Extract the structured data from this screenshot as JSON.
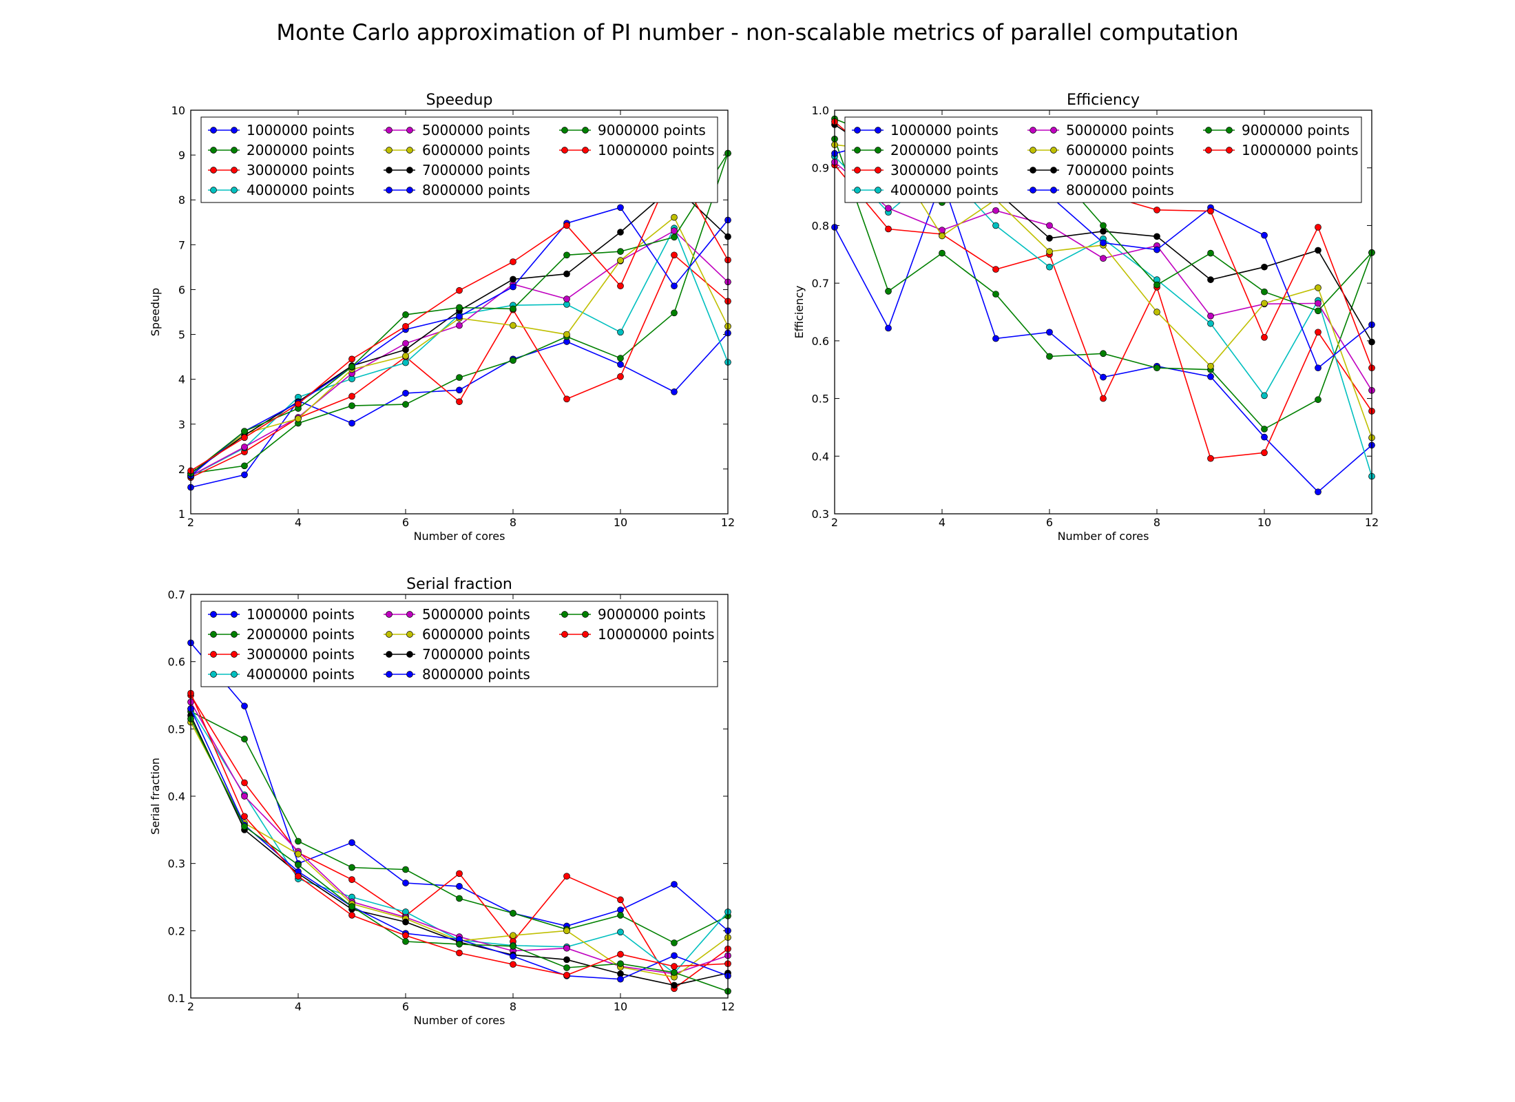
{
  "title": "Monte Carlo approximation of PI number - non-scalable metrics of parallel computation",
  "series_names": [
    "1000000 points",
    "2000000 points",
    "3000000 points",
    "4000000 points",
    "5000000 points",
    "6000000 points",
    "7000000 points",
    "8000000 points",
    "9000000 points",
    "10000000 points"
  ],
  "series_colors": [
    "#0000ff",
    "#008000",
    "#ff0000",
    "#00bfbf",
    "#bf00bf",
    "#bfbf00",
    "#000000",
    "#0000ff",
    "#008000",
    "#ff0000"
  ],
  "chart_data": [
    {
      "type": "line",
      "title": "Speedup",
      "xlabel": "Number of cores",
      "ylabel": "Speedup",
      "xlim": [
        2,
        12
      ],
      "ylim": [
        1,
        10
      ],
      "xticks": [
        "2",
        "4",
        "6",
        "8",
        "10",
        "12"
      ],
      "yticks": [
        "1",
        "2",
        "3",
        "4",
        "5",
        "6",
        "7",
        "8",
        "9",
        "10"
      ],
      "legend_position": "top",
      "x": [
        2,
        3,
        4,
        5,
        6,
        7,
        8,
        9,
        10,
        11,
        12
      ],
      "series": [
        {
          "name": "1000000 points",
          "values": [
            1.59,
            1.87,
            3.52,
            3.02,
            3.69,
            3.76,
            4.45,
            4.84,
            4.33,
            3.72,
            5.03
          ]
        },
        {
          "name": "2000000 points",
          "values": [
            1.9,
            2.07,
            3.02,
            3.41,
            3.44,
            4.04,
            4.42,
            4.95,
            4.47,
            5.48,
            9.04
          ]
        },
        {
          "name": "3000000 points",
          "values": [
            1.81,
            2.38,
            3.14,
            3.62,
            4.5,
            3.5,
            5.55,
            3.56,
            4.06,
            6.77,
            5.74
          ]
        },
        {
          "name": "4000000 points",
          "values": [
            1.84,
            2.47,
            3.6,
            4.01,
            4.37,
            5.44,
            5.65,
            5.67,
            5.05,
            7.37,
            4.38
          ]
        },
        {
          "name": "5000000 points",
          "values": [
            1.85,
            2.49,
            3.15,
            4.13,
            4.8,
            5.2,
            6.12,
            5.79,
            6.64,
            7.31,
            6.17
          ]
        },
        {
          "name": "6000000 points",
          "values": [
            1.9,
            2.79,
            3.12,
            4.22,
            4.52,
            5.36,
            5.2,
            5.0,
            6.65,
            7.61,
            5.18
          ]
        },
        {
          "name": "7000000 points",
          "values": [
            1.9,
            2.75,
            3.5,
            4.3,
            4.66,
            5.53,
            6.23,
            6.35,
            7.28,
            8.32,
            7.18
          ]
        },
        {
          "name": "8000000 points",
          "values": [
            1.85,
            2.84,
            3.48,
            4.27,
            5.11,
            5.4,
            6.06,
            7.48,
            7.83,
            6.08,
            7.55
          ]
        },
        {
          "name": "9000000 points",
          "values": [
            1.9,
            2.84,
            3.35,
            4.28,
            5.44,
            5.6,
            5.57,
            6.77,
            6.85,
            7.17,
            9.04
          ]
        },
        {
          "name": "10000000 points",
          "values": [
            1.96,
            2.7,
            3.45,
            4.45,
            5.18,
            5.98,
            6.62,
            7.43,
            6.08,
            8.77,
            6.66
          ]
        }
      ]
    },
    {
      "type": "line",
      "title": "Efficiency",
      "xlabel": "Number of cores",
      "ylabel": "Efficiency",
      "xlim": [
        2,
        12
      ],
      "ylim": [
        0.3,
        1.0
      ],
      "xticks": [
        "2",
        "4",
        "6",
        "8",
        "10",
        "12"
      ],
      "yticks": [
        "0.3",
        "0.4",
        "0.5",
        "0.6",
        "0.7",
        "0.8",
        "0.9",
        "1.0"
      ],
      "legend_position": "top",
      "x": [
        2,
        3,
        4,
        5,
        6,
        7,
        8,
        9,
        10,
        11,
        12
      ],
      "series": [
        {
          "name": "1000000 points",
          "values": [
            0.797,
            0.622,
            0.88,
            0.604,
            0.615,
            0.537,
            0.556,
            0.538,
            0.433,
            0.338,
            0.419
          ]
        },
        {
          "name": "2000000 points",
          "values": [
            0.95,
            0.686,
            0.752,
            0.681,
            0.573,
            0.578,
            0.553,
            0.55,
            0.447,
            0.498,
            0.753
          ]
        },
        {
          "name": "3000000 points",
          "values": [
            0.905,
            0.794,
            0.785,
            0.724,
            0.75,
            0.5,
            0.693,
            0.396,
            0.406,
            0.615,
            0.478
          ]
        },
        {
          "name": "4000000 points",
          "values": [
            0.92,
            0.823,
            0.9,
            0.8,
            0.728,
            0.777,
            0.706,
            0.63,
            0.505,
            0.67,
            0.365
          ]
        },
        {
          "name": "5000000 points",
          "values": [
            0.91,
            0.83,
            0.792,
            0.826,
            0.8,
            0.743,
            0.765,
            0.643,
            0.664,
            0.665,
            0.514
          ]
        },
        {
          "name": "6000000 points",
          "values": [
            0.94,
            0.93,
            0.782,
            0.845,
            0.755,
            0.766,
            0.65,
            0.556,
            0.665,
            0.692,
            0.432
          ]
        },
        {
          "name": "7000000 points",
          "values": [
            0.975,
            0.912,
            0.87,
            0.86,
            0.778,
            0.79,
            0.781,
            0.706,
            0.728,
            0.757,
            0.598
          ]
        },
        {
          "name": "8000000 points",
          "values": [
            0.925,
            0.948,
            0.87,
            0.852,
            0.852,
            0.77,
            0.758,
            0.831,
            0.783,
            0.553,
            0.628
          ]
        },
        {
          "name": "9000000 points",
          "values": [
            0.985,
            0.948,
            0.84,
            0.856,
            0.906,
            0.8,
            0.697,
            0.752,
            0.685,
            0.652,
            0.753
          ]
        },
        {
          "name": "10000000 points",
          "values": [
            0.98,
            0.9,
            0.862,
            0.89,
            0.869,
            0.854,
            0.827,
            0.825,
            0.606,
            0.797,
            0.553
          ]
        }
      ]
    },
    {
      "type": "line",
      "title": "Serial fraction",
      "xlabel": "Number of cores",
      "ylabel": "Serial fraction",
      "xlim": [
        2,
        12
      ],
      "ylim": [
        0.1,
        0.7
      ],
      "xticks": [
        "2",
        "4",
        "6",
        "8",
        "10",
        "12"
      ],
      "yticks": [
        "0.1",
        "0.2",
        "0.3",
        "0.4",
        "0.5",
        "0.6",
        "0.7"
      ],
      "legend_position": "top",
      "x": [
        2,
        3,
        4,
        5,
        6,
        7,
        8,
        9,
        10,
        11,
        12
      ],
      "series": [
        {
          "name": "1000000 points",
          "values": [
            0.628,
            0.534,
            0.3,
            0.331,
            0.271,
            0.266,
            0.226,
            0.207,
            0.231,
            0.269,
            0.2
          ]
        },
        {
          "name": "2000000 points",
          "values": [
            0.526,
            0.485,
            0.333,
            0.294,
            0.291,
            0.248,
            0.226,
            0.202,
            0.223,
            0.182,
            0.222
          ]
        },
        {
          "name": "3000000 points",
          "values": [
            0.55,
            0.42,
            0.316,
            0.276,
            0.222,
            0.285,
            0.184,
            0.281,
            0.246,
            0.114,
            0.173
          ]
        },
        {
          "name": "4000000 points",
          "values": [
            0.53,
            0.402,
            0.277,
            0.25,
            0.228,
            0.186,
            0.178,
            0.176,
            0.198,
            0.137,
            0.228
          ]
        },
        {
          "name": "5000000 points",
          "values": [
            0.54,
            0.4,
            0.318,
            0.243,
            0.22,
            0.191,
            0.17,
            0.174,
            0.147,
            0.136,
            0.163
          ]
        },
        {
          "name": "6000000 points",
          "values": [
            0.51,
            0.36,
            0.314,
            0.24,
            0.218,
            0.185,
            0.193,
            0.2,
            0.146,
            0.131,
            0.19
          ]
        },
        {
          "name": "7000000 points",
          "values": [
            0.52,
            0.35,
            0.285,
            0.232,
            0.213,
            0.183,
            0.164,
            0.157,
            0.136,
            0.119,
            0.137
          ]
        },
        {
          "name": "8000000 points",
          "values": [
            0.53,
            0.357,
            0.288,
            0.236,
            0.196,
            0.187,
            0.162,
            0.133,
            0.128,
            0.163,
            0.133
          ]
        },
        {
          "name": "9000000 points",
          "values": [
            0.515,
            0.355,
            0.298,
            0.236,
            0.184,
            0.18,
            0.177,
            0.145,
            0.151,
            0.138,
            0.11
          ]
        },
        {
          "name": "10000000 points",
          "values": [
            0.553,
            0.37,
            0.281,
            0.223,
            0.193,
            0.167,
            0.15,
            0.134,
            0.165,
            0.147,
            0.151
          ]
        }
      ]
    }
  ]
}
